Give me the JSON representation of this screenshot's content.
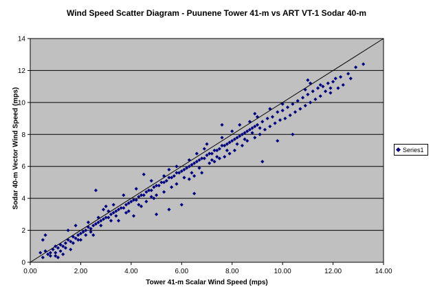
{
  "chart_data": {
    "type": "scatter",
    "title": "Wind Speed Scatter Diagram - Puunene Tower 41-m vs ART VT-1 Sodar 40-m",
    "xlabel": "Tower 41-m Scalar Wind Speed (mps)",
    "ylabel": "Sodar 40-m Vector Wind Speed (mps)",
    "xlim": [
      0,
      14
    ],
    "ylim": [
      0,
      14
    ],
    "x_ticks": [
      "0.00",
      "2.00",
      "4.00",
      "6.00",
      "8.00",
      "10.00",
      "12.00",
      "14.00"
    ],
    "y_ticks": [
      "0",
      "2",
      "4",
      "6",
      "8",
      "10",
      "12",
      "14"
    ],
    "grid": "horizontal",
    "background": "#c0c0c0",
    "marker_color": "#000080",
    "legend_position": "right",
    "reference_line": {
      "x": [
        0,
        14
      ],
      "y": [
        0,
        14
      ]
    },
    "series": [
      {
        "name": "Series1",
        "points": [
          [
            0.4,
            0.6
          ],
          [
            0.5,
            0.3
          ],
          [
            0.6,
            0.7
          ],
          [
            0.7,
            0.5
          ],
          [
            0.8,
            0.4
          ],
          [
            0.9,
            0.8
          ],
          [
            1.0,
            0.6
          ],
          [
            1.0,
            1.0
          ],
          [
            1.1,
            0.9
          ],
          [
            1.2,
            1.1
          ],
          [
            1.3,
            1.0
          ],
          [
            1.4,
            1.2
          ],
          [
            1.5,
            1.4
          ],
          [
            1.6,
            1.3
          ],
          [
            1.7,
            1.6
          ],
          [
            1.8,
            1.5
          ],
          [
            1.9,
            1.7
          ],
          [
            2.0,
            1.8
          ],
          [
            2.1,
            1.9
          ],
          [
            2.2,
            2.0
          ],
          [
            2.3,
            2.2
          ],
          [
            2.4,
            2.1
          ],
          [
            2.5,
            2.3
          ],
          [
            2.6,
            2.4
          ],
          [
            2.7,
            2.5
          ],
          [
            2.8,
            2.6
          ],
          [
            2.9,
            2.7
          ],
          [
            3.0,
            2.8
          ],
          [
            3.1,
            2.8
          ],
          [
            3.2,
            3.0
          ],
          [
            3.3,
            3.1
          ],
          [
            3.4,
            3.2
          ],
          [
            3.5,
            3.3
          ],
          [
            3.6,
            3.4
          ],
          [
            3.7,
            3.4
          ],
          [
            3.8,
            3.6
          ],
          [
            3.9,
            3.7
          ],
          [
            4.0,
            3.8
          ],
          [
            4.1,
            3.9
          ],
          [
            4.2,
            3.9
          ],
          [
            4.3,
            4.1
          ],
          [
            4.4,
            4.2
          ],
          [
            4.5,
            4.2
          ],
          [
            4.6,
            4.4
          ],
          [
            4.7,
            4.5
          ],
          [
            4.8,
            4.5
          ],
          [
            4.9,
            4.7
          ],
          [
            5.0,
            4.8
          ],
          [
            5.1,
            4.8
          ],
          [
            5.2,
            5.0
          ],
          [
            5.3,
            5.0
          ],
          [
            5.4,
            5.1
          ],
          [
            5.5,
            5.3
          ],
          [
            5.6,
            5.3
          ],
          [
            5.7,
            5.4
          ],
          [
            5.8,
            5.6
          ],
          [
            5.9,
            5.6
          ],
          [
            6.0,
            5.7
          ],
          [
            6.1,
            5.8
          ],
          [
            6.2,
            5.9
          ],
          [
            6.3,
            6.0
          ],
          [
            6.4,
            6.1
          ],
          [
            6.5,
            6.2
          ],
          [
            6.6,
            6.3
          ],
          [
            6.7,
            6.4
          ],
          [
            6.8,
            6.5
          ],
          [
            6.9,
            6.5
          ],
          [
            7.0,
            6.7
          ],
          [
            7.1,
            6.8
          ],
          [
            7.2,
            6.8
          ],
          [
            7.3,
            7.0
          ],
          [
            7.4,
            7.0
          ],
          [
            7.5,
            7.1
          ],
          [
            7.6,
            7.3
          ],
          [
            7.7,
            7.3
          ],
          [
            7.8,
            7.4
          ],
          [
            7.9,
            7.5
          ],
          [
            8.0,
            7.6
          ],
          [
            8.1,
            7.7
          ],
          [
            8.2,
            7.8
          ],
          [
            8.3,
            7.9
          ],
          [
            8.4,
            8.0
          ],
          [
            8.5,
            8.1
          ],
          [
            8.6,
            8.2
          ],
          [
            8.7,
            8.3
          ],
          [
            8.8,
            8.4
          ],
          [
            8.9,
            8.5
          ],
          [
            9.0,
            8.6
          ],
          [
            9.2,
            8.8
          ],
          [
            9.4,
            9.0
          ],
          [
            9.6,
            9.1
          ],
          [
            9.8,
            9.4
          ],
          [
            10.0,
            9.5
          ],
          [
            10.2,
            9.7
          ],
          [
            10.4,
            9.9
          ],
          [
            10.6,
            10.1
          ],
          [
            10.8,
            10.3
          ],
          [
            11.0,
            10.5
          ],
          [
            11.2,
            10.7
          ],
          [
            11.4,
            10.9
          ],
          [
            11.6,
            11.0
          ],
          [
            11.8,
            11.2
          ],
          [
            12.0,
            11.3
          ],
          [
            12.3,
            11.6
          ],
          [
            12.6,
            11.8
          ],
          [
            12.9,
            12.2
          ],
          [
            13.2,
            12.4
          ],
          [
            12.7,
            11.5
          ],
          [
            12.4,
            11.1
          ],
          [
            11.9,
            10.6
          ],
          [
            0.6,
            1.7
          ],
          [
            0.5,
            1.4
          ],
          [
            1.0,
            0.4
          ],
          [
            1.3,
            0.5
          ],
          [
            1.1,
            0.3
          ],
          [
            1.6,
            0.8
          ],
          [
            2.0,
            1.4
          ],
          [
            2.5,
            1.7
          ],
          [
            1.5,
            2.0
          ],
          [
            1.8,
            2.3
          ],
          [
            2.6,
            4.5
          ],
          [
            2.7,
            2.8
          ],
          [
            2.3,
            2.5
          ],
          [
            2.9,
            3.3
          ],
          [
            3.1,
            3.2
          ],
          [
            3.5,
            2.6
          ],
          [
            3.9,
            3.2
          ],
          [
            4.1,
            2.9
          ],
          [
            3.0,
            3.5
          ],
          [
            3.3,
            3.6
          ],
          [
            3.7,
            4.2
          ],
          [
            4.2,
            4.6
          ],
          [
            4.4,
            3.5
          ],
          [
            4.6,
            3.8
          ],
          [
            4.9,
            4.0
          ],
          [
            4.8,
            5.1
          ],
          [
            5.0,
            4.2
          ],
          [
            5.3,
            4.4
          ],
          [
            5.6,
            4.7
          ],
          [
            5.0,
            3.0
          ],
          [
            5.5,
            3.3
          ],
          [
            6.5,
            4.3
          ],
          [
            6.0,
            3.6
          ],
          [
            4.5,
            5.5
          ],
          [
            5.3,
            5.4
          ],
          [
            5.5,
            5.8
          ],
          [
            5.8,
            6.0
          ],
          [
            6.3,
            6.4
          ],
          [
            6.5,
            5.4
          ],
          [
            6.8,
            5.6
          ],
          [
            6.9,
            7.1
          ],
          [
            7.1,
            6.2
          ],
          [
            7.3,
            6.3
          ],
          [
            7.0,
            7.4
          ],
          [
            7.5,
            6.5
          ],
          [
            7.7,
            6.6
          ],
          [
            7.6,
            7.8
          ],
          [
            7.9,
            6.8
          ],
          [
            8.1,
            7.0
          ],
          [
            8.0,
            8.2
          ],
          [
            8.4,
            7.3
          ],
          [
            8.3,
            8.6
          ],
          [
            8.6,
            7.6
          ],
          [
            8.7,
            8.8
          ],
          [
            8.9,
            7.8
          ],
          [
            9.1,
            8.0
          ],
          [
            9.3,
            8.3
          ],
          [
            9.0,
            9.1
          ],
          [
            9.5,
            8.5
          ],
          [
            9.7,
            8.7
          ],
          [
            9.5,
            9.6
          ],
          [
            9.9,
            8.9
          ],
          [
            10.1,
            9.0
          ],
          [
            10.0,
            9.9
          ],
          [
            10.3,
            9.2
          ],
          [
            10.4,
            8.0
          ],
          [
            10.5,
            9.4
          ],
          [
            10.7,
            9.6
          ],
          [
            10.9,
            9.8
          ],
          [
            11.1,
            10.0
          ],
          [
            11.3,
            10.2
          ],
          [
            11.5,
            10.4
          ],
          [
            11.7,
            10.7
          ],
          [
            11.9,
            10.9
          ],
          [
            12.2,
            10.9
          ],
          [
            11.0,
            11.4
          ],
          [
            11.5,
            11.1
          ],
          [
            12.1,
            11.5
          ],
          [
            11.1,
            11.2
          ],
          [
            10.9,
            10.8
          ],
          [
            9.2,
            6.3
          ],
          [
            9.8,
            7.6
          ],
          [
            8.9,
            9.3
          ],
          [
            7.6,
            8.6
          ],
          [
            6.3,
            5.2
          ],
          [
            6.6,
            6.8
          ],
          [
            5.8,
            4.9
          ],
          [
            4.8,
            4.1
          ],
          [
            4.3,
            3.6
          ],
          [
            3.8,
            3.1
          ],
          [
            3.4,
            2.9
          ],
          [
            3.2,
            2.6
          ],
          [
            2.8,
            2.3
          ],
          [
            2.4,
            1.9
          ],
          [
            2.2,
            1.7
          ],
          [
            1.9,
            1.4
          ],
          [
            1.7,
            1.2
          ],
          [
            1.4,
            0.9
          ],
          [
            1.2,
            0.7
          ],
          [
            0.8,
            0.6
          ],
          [
            6.1,
            5.3
          ],
          [
            6.4,
            5.6
          ],
          [
            6.7,
            5.9
          ],
          [
            7.2,
            6.4
          ],
          [
            7.4,
            6.6
          ],
          [
            7.8,
            7.0
          ],
          [
            8.2,
            7.4
          ],
          [
            8.5,
            7.7
          ],
          [
            8.8,
            8.1
          ],
          [
            9.1,
            8.4
          ]
        ]
      }
    ]
  }
}
